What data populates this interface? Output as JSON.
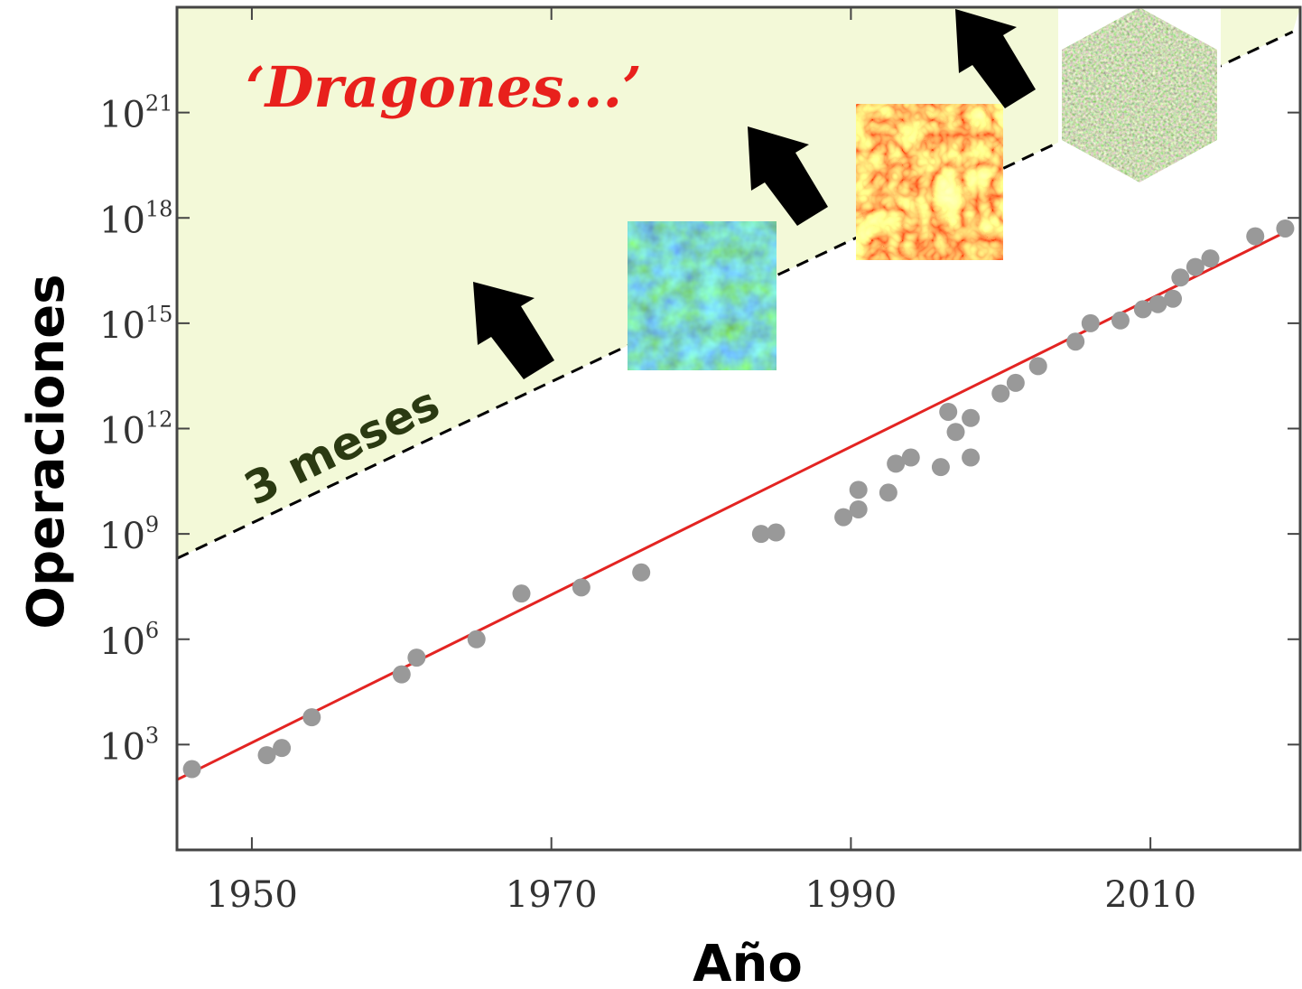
{
  "chart_data": {
    "type": "scatter",
    "title": "",
    "xlabel": "Año",
    "ylabel": "Operaciones",
    "xlim": [
      1945,
      2020
    ],
    "ylim": [
      1,
      1000000000000000000000000
    ],
    "y_scale": "log",
    "x_ticks": [
      {
        "value": 1950,
        "label": "1950"
      },
      {
        "value": 1970,
        "label": "1970"
      },
      {
        "value": 1990,
        "label": "1990"
      },
      {
        "value": 2010,
        "label": "2010"
      }
    ],
    "y_ticks": [
      {
        "value": 1000,
        "base": "10",
        "exp": "3"
      },
      {
        "value": 1000000,
        "base": "10",
        "exp": "6"
      },
      {
        "value": 1000000000,
        "base": "10",
        "exp": "9"
      },
      {
        "value": 1000000000000,
        "base": "10",
        "exp": "12"
      },
      {
        "value": 1000000000000000,
        "base": "10",
        "exp": "15"
      },
      {
        "value": 1000000000000000000,
        "base": "10",
        "exp": "18"
      },
      {
        "value": 1000000000000000000000,
        "base": "10",
        "exp": "21"
      }
    ],
    "points": [
      {
        "x": 1946,
        "y": 200
      },
      {
        "x": 1951,
        "y": 500
      },
      {
        "x": 1952,
        "y": 800
      },
      {
        "x": 1954,
        "y": 6000
      },
      {
        "x": 1960,
        "y": 100000
      },
      {
        "x": 1961,
        "y": 300000
      },
      {
        "x": 1965,
        "y": 1000000
      },
      {
        "x": 1968,
        "y": 20000000
      },
      {
        "x": 1972,
        "y": 30000000
      },
      {
        "x": 1976,
        "y": 80000000
      },
      {
        "x": 1984,
        "y": 1000000000
      },
      {
        "x": 1985,
        "y": 1100000000
      },
      {
        "x": 1989.5,
        "y": 3000000000
      },
      {
        "x": 1990.5,
        "y": 5000000000
      },
      {
        "x": 1990.5,
        "y": 18000000000
      },
      {
        "x": 1992.5,
        "y": 15000000000
      },
      {
        "x": 1993,
        "y": 100000000000
      },
      {
        "x": 1994,
        "y": 150000000000
      },
      {
        "x": 1996,
        "y": 80000000000
      },
      {
        "x": 1996.5,
        "y": 3000000000000
      },
      {
        "x": 1997,
        "y": 800000000000
      },
      {
        "x": 1998,
        "y": 2000000000000
      },
      {
        "x": 1998,
        "y": 150000000000
      },
      {
        "x": 2000,
        "y": 10000000000000
      },
      {
        "x": 2001,
        "y": 20000000000000
      },
      {
        "x": 2002.5,
        "y": 60000000000000
      },
      {
        "x": 2005,
        "y": 300000000000000
      },
      {
        "x": 2006,
        "y": 1000000000000000
      },
      {
        "x": 2008,
        "y": 1200000000000000
      },
      {
        "x": 2009.5,
        "y": 2500000000000000
      },
      {
        "x": 2010.5,
        "y": 3500000000000000
      },
      {
        "x": 2011.5,
        "y": 5000000000000000
      },
      {
        "x": 2012,
        "y": 20000000000000000
      },
      {
        "x": 2013,
        "y": 40000000000000000
      },
      {
        "x": 2014,
        "y": 70000000000000000
      },
      {
        "x": 2017,
        "y": 300000000000000000
      },
      {
        "x": 2019,
        "y": 500000000000000000
      }
    ],
    "trend_line": {
      "x": [
        1945,
        2019.5
      ],
      "y": [
        100,
        500000000000000000
      ],
      "color": "#e32422"
    },
    "dashed_line": {
      "x": [
        1945,
        2019.5
      ],
      "y": [
        200000000,
        200000000000000000000000
      ],
      "color": "#000000"
    },
    "annotations": {
      "region_label": "‘Dragones...’",
      "line_label": "3 meses"
    },
    "colors": {
      "points": "#999999",
      "region_fill": "#f3f9d8",
      "region_label": "#e8201c",
      "line_label": "#2b3a12",
      "arrows": "#000000"
    },
    "insets": [
      "turbulence-field-blue",
      "turbulence-field-red",
      "virus-capsid-render"
    ]
  }
}
